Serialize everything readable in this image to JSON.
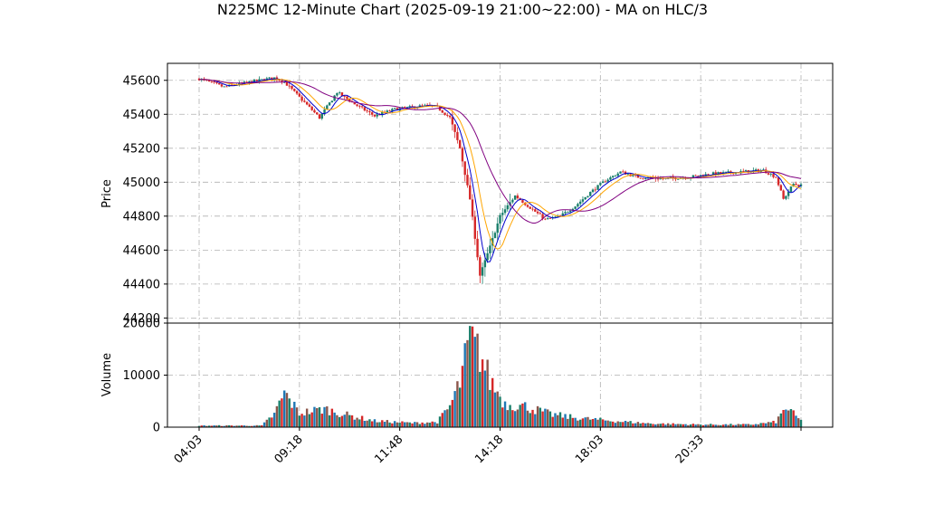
{
  "title": "N225MC 12-Minute Chart (2025-09-19 21:00~22:00) - MA on HLC/3",
  "chart_data": [
    {
      "type": "candlestick",
      "ylabel": "Price",
      "ylim": [
        44170,
        45700
      ],
      "yticks": [
        44200,
        44400,
        44600,
        44800,
        45000,
        45200,
        45400,
        45600
      ],
      "grid": true,
      "up_color": "#1a7f6b",
      "down_color": "#d62728",
      "ma_colors": [
        "#0000cc",
        "#ffa500",
        "#800080"
      ],
      "anchors": [
        {
          "x": 0,
          "p": 45610
        },
        {
          "x": 10,
          "p": 45560
        },
        {
          "x": 20,
          "p": 45590
        },
        {
          "x": 30,
          "p": 45615
        },
        {
          "x": 34,
          "p": 45590
        },
        {
          "x": 42,
          "p": 45470
        },
        {
          "x": 48,
          "p": 45380
        },
        {
          "x": 55,
          "p": 45530
        },
        {
          "x": 62,
          "p": 45460
        },
        {
          "x": 70,
          "p": 45390
        },
        {
          "x": 78,
          "p": 45430
        },
        {
          "x": 90,
          "p": 45450
        },
        {
          "x": 95,
          "p": 45440
        },
        {
          "x": 100,
          "p": 45380
        },
        {
          "x": 104,
          "p": 45200
        },
        {
          "x": 108,
          "p": 44900
        },
        {
          "x": 112,
          "p": 44450
        },
        {
          "x": 116,
          "p": 44620
        },
        {
          "x": 120,
          "p": 44800
        },
        {
          "x": 126,
          "p": 44920
        },
        {
          "x": 132,
          "p": 44850
        },
        {
          "x": 138,
          "p": 44780
        },
        {
          "x": 144,
          "p": 44800
        },
        {
          "x": 150,
          "p": 44860
        },
        {
          "x": 156,
          "p": 44940
        },
        {
          "x": 162,
          "p": 45010
        },
        {
          "x": 168,
          "p": 45060
        },
        {
          "x": 175,
          "p": 45030
        },
        {
          "x": 185,
          "p": 45020
        },
        {
          "x": 195,
          "p": 45030
        },
        {
          "x": 205,
          "p": 45050
        },
        {
          "x": 215,
          "p": 45060
        },
        {
          "x": 225,
          "p": 45070
        },
        {
          "x": 230,
          "p": 45030
        },
        {
          "x": 233,
          "p": 44900
        },
        {
          "x": 237,
          "p": 44990
        },
        {
          "x": 240,
          "p": 44980
        }
      ]
    },
    {
      "type": "bar",
      "ylabel": "Volume",
      "ylim": [
        0,
        20000
      ],
      "yticks": [
        0,
        10000,
        20000
      ],
      "grid": true,
      "anchors": [
        {
          "x": 0,
          "v": 300
        },
        {
          "x": 25,
          "v": 300
        },
        {
          "x": 30,
          "v": 2500
        },
        {
          "x": 34,
          "v": 6500
        },
        {
          "x": 40,
          "v": 2700
        },
        {
          "x": 50,
          "v": 3500
        },
        {
          "x": 60,
          "v": 2200
        },
        {
          "x": 70,
          "v": 1200
        },
        {
          "x": 85,
          "v": 800
        },
        {
          "x": 95,
          "v": 1000
        },
        {
          "x": 100,
          "v": 4000
        },
        {
          "x": 104,
          "v": 8500
        },
        {
          "x": 108,
          "v": 17000
        },
        {
          "x": 112,
          "v": 14000
        },
        {
          "x": 116,
          "v": 9000
        },
        {
          "x": 122,
          "v": 4500
        },
        {
          "x": 130,
          "v": 4000
        },
        {
          "x": 140,
          "v": 2500
        },
        {
          "x": 150,
          "v": 1800
        },
        {
          "x": 165,
          "v": 1200
        },
        {
          "x": 180,
          "v": 700
        },
        {
          "x": 200,
          "v": 500
        },
        {
          "x": 220,
          "v": 500
        },
        {
          "x": 230,
          "v": 1000
        },
        {
          "x": 234,
          "v": 3800
        },
        {
          "x": 240,
          "v": 1200
        }
      ]
    }
  ],
  "x_axis": {
    "ticks": [
      {
        "x": 0,
        "label": "04:03"
      },
      {
        "x": 40,
        "label": "09:18"
      },
      {
        "x": 80,
        "label": "11:48"
      },
      {
        "x": 120,
        "label": "14:18"
      },
      {
        "x": 160,
        "label": "18:03"
      },
      {
        "x": 200,
        "label": "20:33"
      },
      {
        "x": 240,
        "label": ""
      }
    ]
  }
}
